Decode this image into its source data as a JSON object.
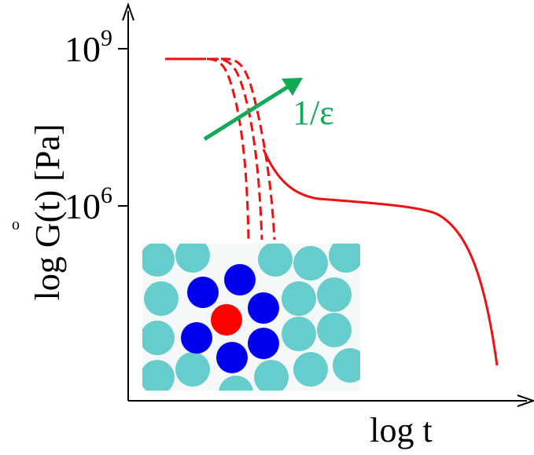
{
  "axes": {
    "y_label": "log G(t)  [Pa]",
    "x_label": "log t"
  },
  "ticks": [
    {
      "base": "10",
      "exponent": "9"
    },
    {
      "base": "10",
      "exponent": "6"
    }
  ],
  "annotation": "1/ε",
  "stray_mark": "o"
}
